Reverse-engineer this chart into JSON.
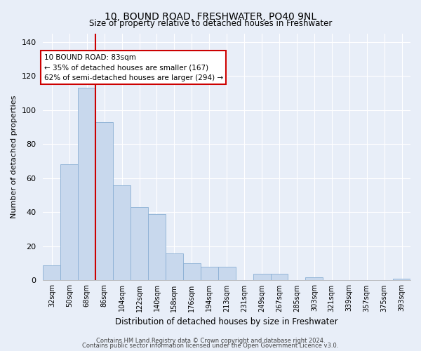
{
  "title": "10, BOUND ROAD, FRESHWATER, PO40 9NL",
  "subtitle": "Size of property relative to detached houses in Freshwater",
  "xlabel": "Distribution of detached houses by size in Freshwater",
  "ylabel": "Number of detached properties",
  "bar_labels": [
    "32sqm",
    "50sqm",
    "68sqm",
    "86sqm",
    "104sqm",
    "122sqm",
    "140sqm",
    "158sqm",
    "176sqm",
    "194sqm",
    "213sqm",
    "231sqm",
    "249sqm",
    "267sqm",
    "285sqm",
    "303sqm",
    "321sqm",
    "339sqm",
    "357sqm",
    "375sqm",
    "393sqm"
  ],
  "bar_values": [
    9,
    68,
    113,
    93,
    56,
    43,
    39,
    16,
    10,
    8,
    8,
    0,
    4,
    4,
    0,
    2,
    0,
    0,
    0,
    0,
    1
  ],
  "bar_color": "#c8d8ed",
  "bar_edge_color": "#8aafd4",
  "vline_x": 3,
  "vline_color": "#cc0000",
  "ylim": [
    0,
    145
  ],
  "yticks": [
    0,
    20,
    40,
    60,
    80,
    100,
    120,
    140
  ],
  "annotation_line1": "10 BOUND ROAD: 83sqm",
  "annotation_line2": "← 35% of detached houses are smaller (167)",
  "annotation_line3": "62% of semi-detached houses are larger (294) →",
  "annotation_box_color": "#ffffff",
  "annotation_box_edge": "#cc0000",
  "footnote_line1": "Contains HM Land Registry data © Crown copyright and database right 2024.",
  "footnote_line2": "Contains public sector information licensed under the Open Government Licence v3.0.",
  "bg_color": "#e8eef8",
  "grid_color": "#ffffff",
  "title_fontsize": 10,
  "subtitle_fontsize": 9
}
